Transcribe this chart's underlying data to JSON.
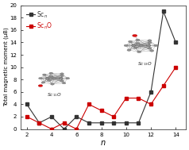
{
  "scn_x": [
    2,
    3,
    4,
    5,
    6,
    7,
    8,
    9,
    10,
    11,
    12,
    13,
    14
  ],
  "scn_y": [
    4,
    1,
    2,
    0,
    2,
    1,
    1,
    1,
    1,
    1,
    6,
    19,
    14
  ],
  "scno_x": [
    2,
    3,
    4,
    5,
    6,
    7,
    8,
    9,
    10,
    11,
    12,
    13,
    14
  ],
  "scno_y": [
    2,
    1,
    0,
    1,
    0,
    4,
    3,
    2,
    5,
    5,
    4,
    7,
    10
  ],
  "scn_color": "#333333",
  "scno_color": "#cc0000",
  "xlabel": "n",
  "ylabel": "Total magnetic moment (μB)",
  "xlim": [
    1.5,
    14.8
  ],
  "ylim": [
    0,
    20
  ],
  "yticks": [
    0,
    2,
    4,
    6,
    8,
    10,
    12,
    14,
    16,
    18,
    20
  ],
  "xticks": [
    2,
    4,
    6,
    8,
    10,
    12,
    14
  ],
  "background_color": "#ffffff"
}
